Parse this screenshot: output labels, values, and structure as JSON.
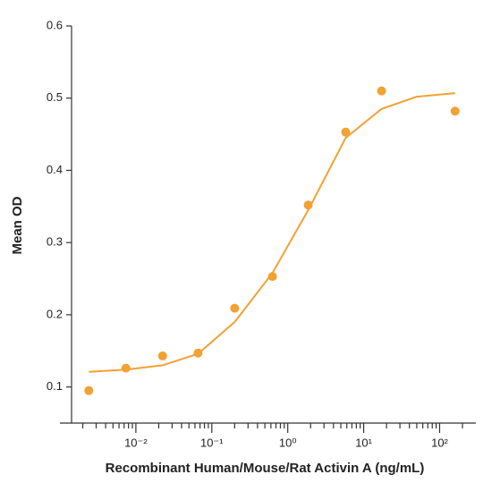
{
  "chart_data": {
    "type": "scatter",
    "xlabel": "Recombinant Human/Mouse/Rat Activin A (ng/mL)",
    "ylabel": "Mean OD",
    "xscale": "log",
    "xlim": [
      0.001,
      300
    ],
    "ylim": [
      0.05,
      0.6
    ],
    "xticks": [
      {
        "value": 0.01,
        "label": "10⁻²"
      },
      {
        "value": 0.1,
        "label": "10⁻¹"
      },
      {
        "value": 1,
        "label": "10⁰"
      },
      {
        "value": 10,
        "label": "10¹"
      },
      {
        "value": 100,
        "label": "10²"
      }
    ],
    "yticks": [
      0.1,
      0.2,
      0.3,
      0.4,
      0.5,
      0.6
    ],
    "color": "#f2a133",
    "points": {
      "x": [
        0.0024,
        0.0074,
        0.0225,
        0.066,
        0.2,
        0.63,
        1.86,
        5.8,
        17.2,
        160
      ],
      "y": [
        0.095,
        0.126,
        0.143,
        0.147,
        0.209,
        0.253,
        0.352,
        0.453,
        0.51,
        0.482
      ]
    },
    "fit": {
      "x": [
        0.0024,
        0.0074,
        0.0225,
        0.066,
        0.2,
        0.63,
        1.86,
        5.8,
        17.2,
        50,
        160
      ],
      "y": [
        0.121,
        0.124,
        0.13,
        0.146,
        0.19,
        0.258,
        0.345,
        0.445,
        0.485,
        0.502,
        0.507
      ]
    }
  }
}
